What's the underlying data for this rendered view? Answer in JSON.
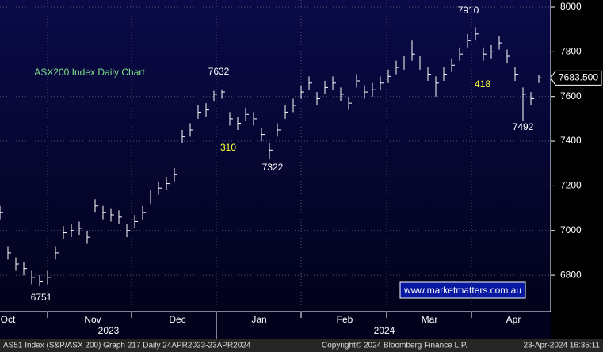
{
  "chart_data": {
    "type": "hlc",
    "title": "ASX200 Index Daily Chart",
    "title_color": "#7ee08a",
    "color": "#ffffff",
    "x": [
      0,
      1,
      2,
      3,
      4,
      5,
      6,
      7,
      8,
      9,
      10,
      11,
      12,
      13,
      14,
      15,
      16,
      17,
      18,
      19,
      20,
      21,
      22,
      23,
      24,
      25,
      26,
      27,
      28,
      29,
      30,
      31,
      32,
      33,
      34,
      35,
      36,
      37,
      38,
      39,
      40,
      41,
      42,
      43,
      44,
      45,
      46,
      47,
      48,
      49,
      50,
      51,
      52,
      53,
      54,
      55,
      56,
      57,
      58,
      59,
      60,
      61,
      62,
      63,
      64,
      65,
      66,
      67,
      68
    ],
    "high": [
      7110,
      6930,
      6880,
      6860,
      6820,
      6800,
      6820,
      6930,
      7020,
      7030,
      7040,
      7000,
      7140,
      7110,
      7100,
      7090,
      7030,
      7070,
      7110,
      7180,
      7220,
      7240,
      7280,
      7450,
      7480,
      7560,
      7570,
      7625,
      7632,
      7530,
      7510,
      7550,
      7530,
      7460,
      7390,
      7480,
      7560,
      7590,
      7650,
      7690,
      7620,
      7670,
      7690,
      7640,
      7600,
      7700,
      7650,
      7660,
      7690,
      7720,
      7760,
      7780,
      7850,
      7780,
      7730,
      7690,
      7730,
      7770,
      7820,
      7880,
      7910,
      7820,
      7830,
      7870,
      7810,
      7730,
      7640,
      7620,
      7695
    ],
    "low": [
      7050,
      6870,
      6820,
      6800,
      6760,
      6751,
      6760,
      6870,
      6960,
      6970,
      6980,
      6940,
      7080,
      7050,
      7040,
      7030,
      6970,
      7010,
      7050,
      7120,
      7160,
      7180,
      7220,
      7390,
      7420,
      7500,
      7510,
      7580,
      7590,
      7470,
      7450,
      7490,
      7470,
      7400,
      7322,
      7420,
      7500,
      7530,
      7590,
      7630,
      7560,
      7610,
      7630,
      7580,
      7540,
      7640,
      7590,
      7600,
      7630,
      7660,
      7700,
      7720,
      7760,
      7720,
      7670,
      7600,
      7670,
      7710,
      7760,
      7820,
      7850,
      7760,
      7770,
      7810,
      7750,
      7670,
      7492,
      7560,
      7660
    ],
    "close": [
      7080,
      6900,
      6850,
      6830,
      6790,
      6770,
      6790,
      6900,
      6990,
      7000,
      7010,
      6970,
      7110,
      7080,
      7070,
      7060,
      7000,
      7040,
      7080,
      7150,
      7190,
      7210,
      7250,
      7420,
      7450,
      7530,
      7540,
      7610,
      7620,
      7500,
      7480,
      7520,
      7500,
      7430,
      7360,
      7450,
      7530,
      7560,
      7620,
      7660,
      7590,
      7640,
      7660,
      7610,
      7570,
      7670,
      7620,
      7630,
      7660,
      7690,
      7730,
      7750,
      7790,
      7750,
      7700,
      7660,
      7700,
      7740,
      7790,
      7850,
      7880,
      7790,
      7800,
      7840,
      7780,
      7700,
      7610,
      7590,
      7683
    ],
    "xlim": [
      0,
      69.5
    ],
    "ylim": [
      6637,
      8032
    ],
    "yticks": [
      6800,
      7000,
      7200,
      7400,
      7600,
      7800,
      8000
    ],
    "xticks": [
      {
        "value": 1,
        "label": "Oct"
      },
      {
        "value": 11.7,
        "label": "Nov"
      },
      {
        "value": 22.4,
        "label": "Dec"
      },
      {
        "value": 32.7,
        "label": "Jan"
      },
      {
        "value": 43.5,
        "label": "Feb"
      },
      {
        "value": 54.2,
        "label": "Mar"
      },
      {
        "value": 64.8,
        "label": "Apr"
      }
    ],
    "xgrid": [
      6,
      16.6,
      27.3,
      38,
      48.8,
      59.5
    ],
    "year_labels": [
      {
        "value": 13.7,
        "label": "2023"
      },
      {
        "value": 48.5,
        "label": "2024"
      }
    ],
    "grid": true,
    "last_price": "7683.500",
    "annotations": [
      {
        "text": "7910",
        "color": "#ffffff"
      },
      {
        "text": "7632",
        "color": "#ffffff"
      },
      {
        "text": "7322",
        "color": "#ffffff"
      },
      {
        "text": "6751",
        "color": "#ffffff"
      },
      {
        "text": "7492",
        "color": "#ffffff"
      },
      {
        "text": "310",
        "color": "#ffff33"
      },
      {
        "text": "418",
        "color": "#ffff33"
      }
    ],
    "watermark": "www.marketmatters.com.au"
  },
  "footer": {
    "left": "AS51 Index (S&P/ASX 200) Graph 217  Daily 24APR2023-23APR2024",
    "center": "Copyright© 2024 Bloomberg Finance L.P.",
    "right": "23-Apr-2024 16:35:11"
  }
}
